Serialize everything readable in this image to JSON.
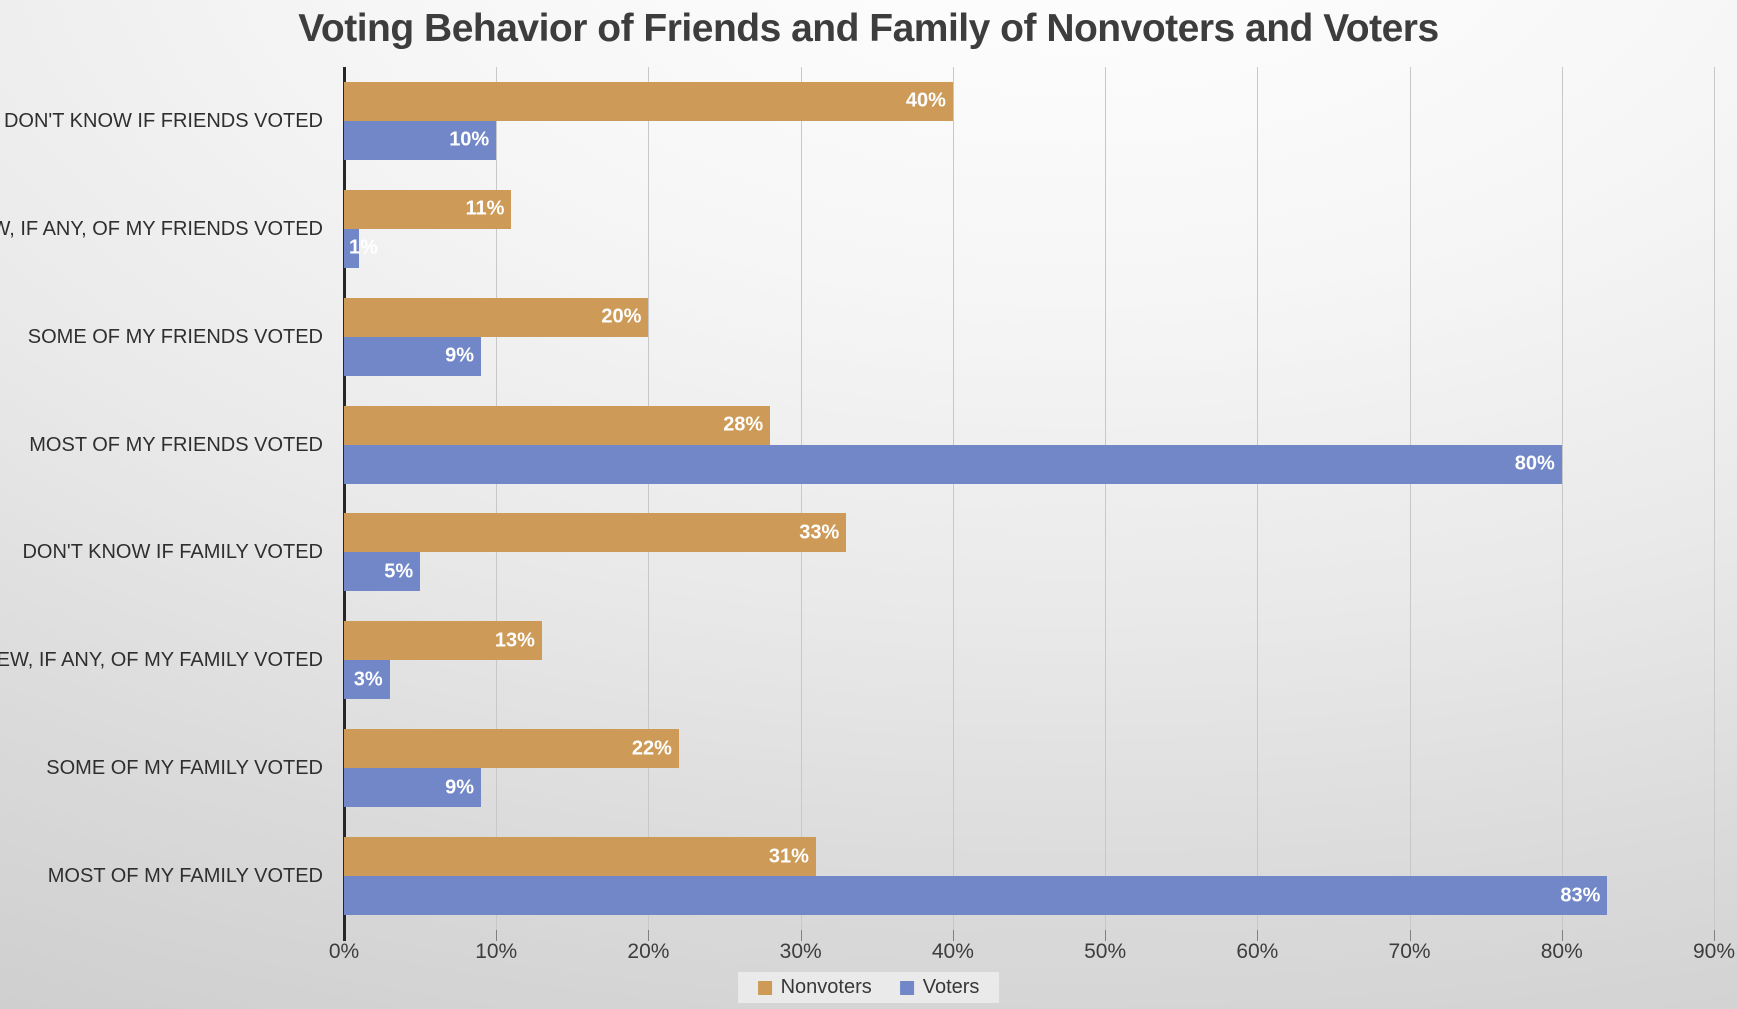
{
  "chart": {
    "title": "Voting Behavior of Friends and Family of Nonvoters and Voters"
  },
  "chart_data": {
    "type": "bar",
    "orientation": "horizontal",
    "title": "Voting Behavior of Friends and Family of Nonvoters and Voters",
    "categories": [
      "DON'T KNOW IF FRIENDS VOTED",
      "FEW, IF ANY, OF MY FRIENDS VOTED",
      "SOME OF MY FRIENDS VOTED",
      "MOST OF MY FRIENDS VOTED",
      "DON'T KNOW IF FAMILY VOTED",
      "FEW, IF ANY, OF MY FAMILY VOTED",
      "SOME OF MY FAMILY VOTED",
      "MOST OF MY FAMILY VOTED"
    ],
    "series": [
      {
        "name": "Nonvoters",
        "color": "#CD9A57",
        "values": [
          40,
          11,
          20,
          28,
          33,
          13,
          22,
          31
        ],
        "labels": [
          "40%",
          "11%",
          "20%",
          "28%",
          "33%",
          "13%",
          "22%",
          "31%"
        ]
      },
      {
        "name": "Voters",
        "color": "#7187C8",
        "values": [
          10,
          1,
          9,
          80,
          5,
          3,
          9,
          83
        ],
        "labels": [
          "10%",
          "1%",
          "9%",
          "80%",
          "5%",
          "3%",
          "9%",
          "83%"
        ]
      }
    ],
    "x_axis": {
      "min": 0,
      "max": 90,
      "tick_step": 10,
      "tick_labels": [
        "0%",
        "10%",
        "20%",
        "30%",
        "40%",
        "50%",
        "60%",
        "70%",
        "80%",
        "90%"
      ]
    },
    "legend": {
      "position": "bottom",
      "entries": [
        "Nonvoters",
        "Voters"
      ]
    },
    "grid": true,
    "data_labels": true,
    "data_label_color": "#ffffff",
    "gridline_color": "#c8c8c8",
    "axis_line_color": "#262626"
  }
}
